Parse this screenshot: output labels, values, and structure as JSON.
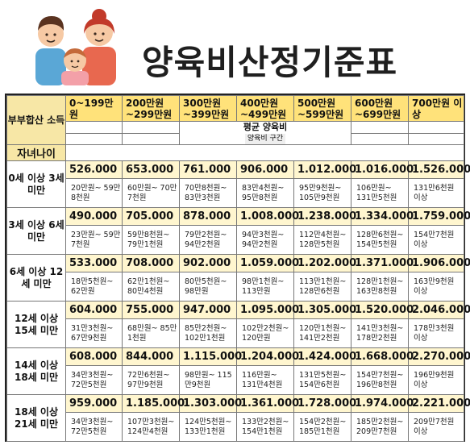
{
  "title": "양육비산정기준표",
  "table": {
    "corner_top": "부부합산 소득",
    "corner_bottom": "자녀나이",
    "avg_label": "평균 양육비",
    "avg_sub": "양육비 구간",
    "income_columns": [
      "0~199만원",
      "200만원 ~299만원",
      "300만원 ~399만원",
      "400만원 ~499만원",
      "500만원 ~599만원",
      "600만원 ~699만원",
      "700만원 이상"
    ],
    "rows": [
      {
        "age": "0세 이상 3세 미만",
        "values": [
          "526.000",
          "653.000",
          "761.000",
          "906.000",
          "1.012.000",
          "1.016.000",
          "1.526.000"
        ],
        "ranges": [
          "20만원~ 59만8천원",
          "60만원~ 70만7천원",
          "70만8천원~ 83만3천원",
          "83만4천원~ 95만8천원",
          "95만9천원~ 105만9천원",
          "106만원~ 131만5천원",
          "131만6천원 이상"
        ]
      },
      {
        "age": "3세 이상 6세 미만",
        "values": [
          "490.000",
          "705.000",
          "878.000",
          "1.008.000",
          "1.238.000",
          "1.334.000",
          "1.759.000"
        ],
        "ranges": [
          "23만원~ 59만7천원",
          "59만8천원~ 79만1천원",
          "79만2천원~ 94만2천원",
          "94만3천원~ 94만2천원",
          "112만4천원~ 128만5천원",
          "128만6천원~ 154만5천원",
          "154만7천원 이상"
        ]
      },
      {
        "age": "6세 이상 12세 미만",
        "values": [
          "533.000",
          "708.000",
          "902.000",
          "1.059.000",
          "1.202.000",
          "1.371.000",
          "1.906.000"
        ],
        "ranges": [
          "18만5천원~ 62만원",
          "62만1천원~ 80만4천원",
          "80만5천원~ 98만원",
          "98만1천원~ 113만원",
          "113만1천원~ 128만6천원",
          "128만1천원~ 163만8천원",
          "163만9천원 이상"
        ]
      },
      {
        "age": "12세 이상 15세 미만",
        "values": [
          "604.000",
          "755.000",
          "947.000",
          "1.095.000",
          "1.305.000",
          "1.520.000",
          "2.046.000"
        ],
        "ranges": [
          "31만3천원~ 67만9천원",
          "68만원~ 85만1천원",
          "85만2천원~ 102만1천원",
          "102만2천원~ 120만원",
          "120만1천원~ 141만2천원",
          "141만3천원~ 178만2천원",
          "178만3천원 이상"
        ]
      },
      {
        "age": "14세 이상 18세 미만",
        "values": [
          "608.000",
          "844.000",
          "1.115.000",
          "1.204.000",
          "1.424.000",
          "1.668.000",
          "2.270.000"
        ],
        "ranges": [
          "34만3천원~ 72만5천원",
          "72만6천원~ 97만9천원",
          "98만원~ 115만9천원",
          "116만원~ 131만4천원",
          "131만5천원~ 154만6천원",
          "154만7천원~ 196만8천원",
          "196만9천원 이상"
        ]
      },
      {
        "age": "18세 이상 21세 미만",
        "values": [
          "959.000",
          "1.185.000",
          "1.303.000",
          "1.361.000",
          "1.728.000",
          "1.974.000",
          "2.221.000"
        ],
        "ranges": [
          "34만3천원~ 72만5천원",
          "107만3천원~ 124만4천원",
          "124만5천원~ 133만1천원",
          "133만2천원~ 154만1천원",
          "154만2천원~ 185만1천원",
          "185만2천원~ 209만7천원",
          "209만7천원 이상"
        ]
      }
    ]
  },
  "colors": {
    "header_yellow": "#ffe27a",
    "value_cell": "#fff6cf",
    "corner": "#f7e7a6",
    "border": "#222222"
  },
  "icon": "family-icon"
}
